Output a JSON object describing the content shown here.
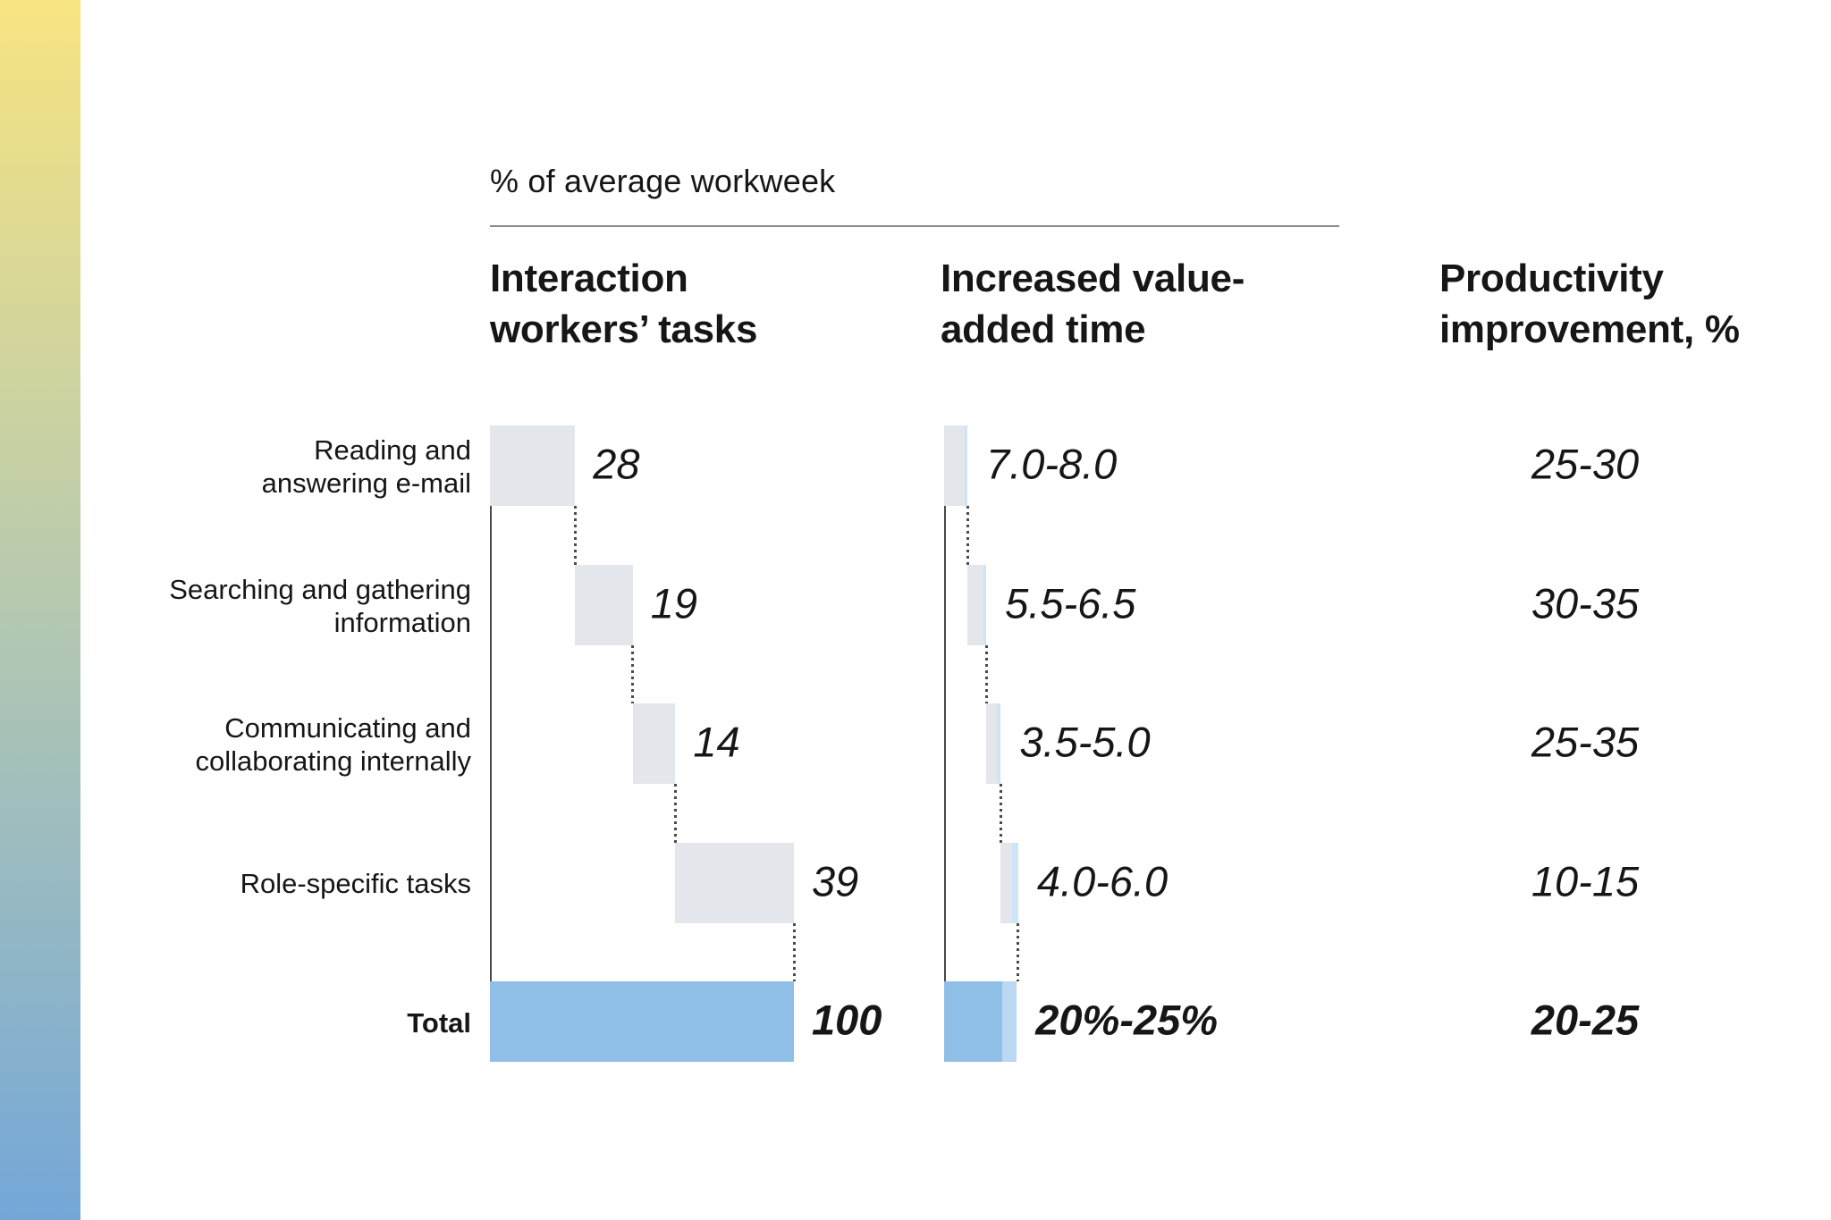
{
  "chart_data": {
    "type": "waterfall",
    "title": "% of average workweek",
    "columns": [
      "Interaction workers’ tasks",
      "Increased value-added time",
      "Productivity improvement, %"
    ],
    "categories": [
      "Reading and answering e-mail",
      "Searching and gathering information",
      "Communicating and collaborating internally",
      "Role-specific tasks",
      "Total"
    ],
    "category_lines": [
      [
        "Reading and",
        "answering e-mail"
      ],
      [
        "Searching and gathering",
        "information"
      ],
      [
        "Communicating and",
        "collaborating internally"
      ],
      [
        "Role-specific tasks"
      ],
      [
        "Total"
      ]
    ],
    "series": [
      {
        "name": "Interaction workers’ tasks",
        "unit": "% of average workweek",
        "values": [
          28,
          19,
          14,
          39
        ],
        "total": 100,
        "value_labels": [
          "28",
          "19",
          "14",
          "39"
        ],
        "total_label": "100"
      },
      {
        "name": "Increased value-added time",
        "unit": "% of average workweek",
        "ranges": [
          [
            7.0,
            8.0
          ],
          [
            5.5,
            6.5
          ],
          [
            3.5,
            5.0
          ],
          [
            4.0,
            6.0
          ]
        ],
        "total_range": [
          20,
          25
        ],
        "value_labels": [
          "7.0-8.0",
          "5.5-6.5",
          "3.5-5.0",
          "4.0-6.0"
        ],
        "total_label": "20%-25%"
      },
      {
        "name": "Productivity improvement, %",
        "value_labels": [
          "25-30",
          "30-35",
          "25-35",
          "10-15"
        ],
        "total_label": "20-25"
      }
    ],
    "layout_hints": {
      "grid": false,
      "legend": false,
      "orientation": "horizontal"
    }
  },
  "colors": {
    "bar_gray": "#E3E6EA",
    "bar_blue_light": "#CDE6F7",
    "total_blue": "#8FBEE6",
    "total_blue_light": "#BAD8F1",
    "axis": "#4A4A4A",
    "connector": "#4A4A4A",
    "rule": "#8A8A8A",
    "text": "#161616",
    "gradient_top": "#F8E481",
    "gradient_mid": "#BACBAD",
    "gradient_bottom": "#74A7D8"
  }
}
